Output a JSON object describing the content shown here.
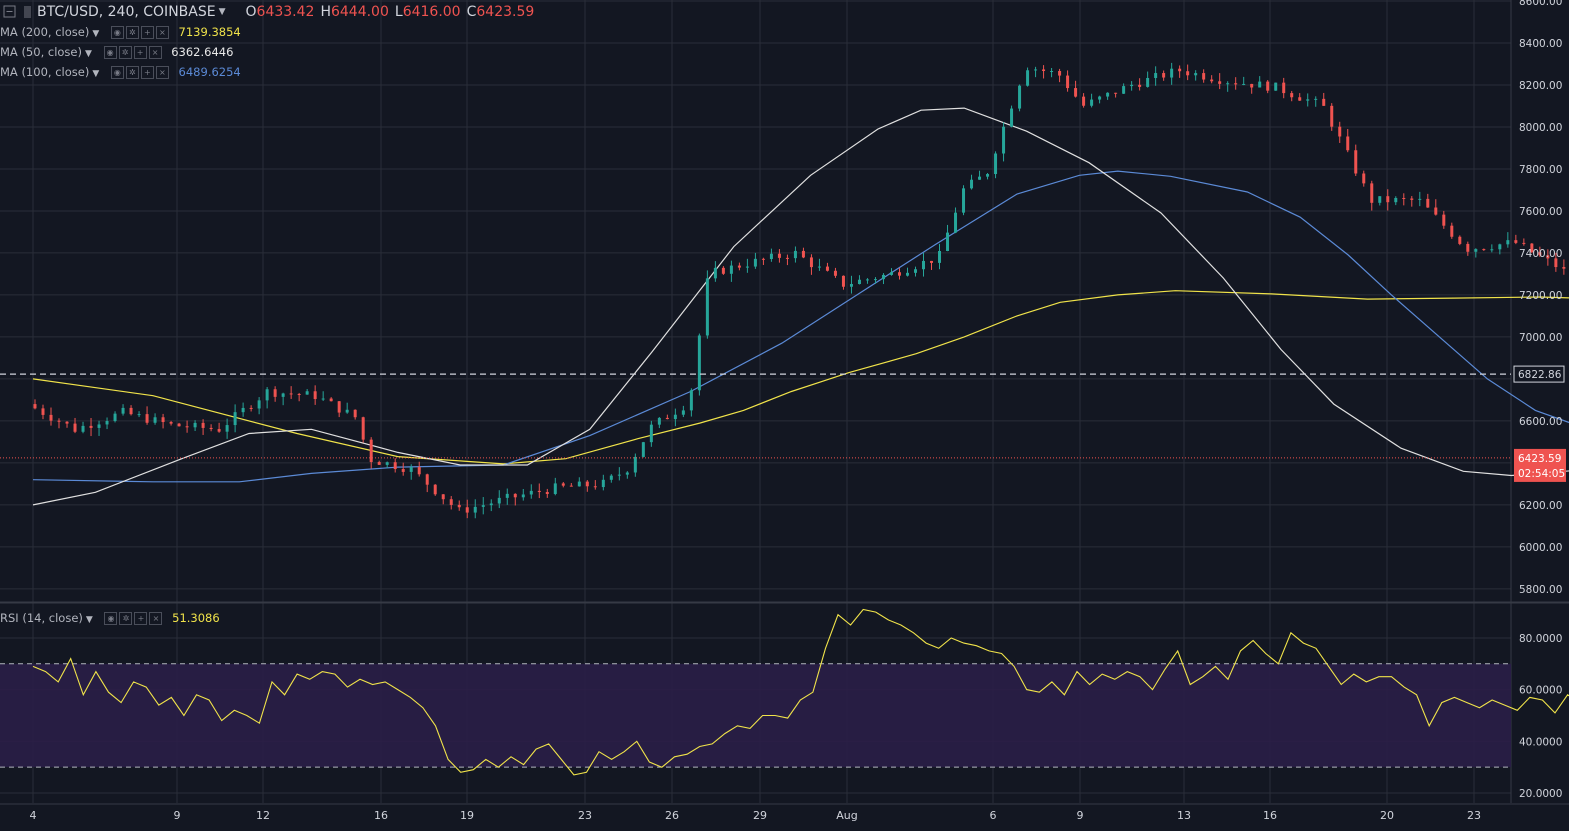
{
  "header": {
    "symbol": "BTC/USD, 240, COINBASE",
    "o_label": "O",
    "o_value": "6433.42",
    "h_label": "H",
    "h_value": "6444.00",
    "l_label": "L",
    "l_value": "6416.00",
    "c_label": "C",
    "c_value": "6423.59"
  },
  "studies": [
    {
      "name": "MA (200, close)",
      "value": "7139.3854",
      "color": "#f0e34a"
    },
    {
      "name": "MA (50, close)",
      "value": "6362.6446",
      "color": "#e0e0e0"
    },
    {
      "name": "MA (100, close)",
      "value": "6489.6254",
      "color": "#5b8ad6"
    }
  ],
  "rsi_legend": {
    "name": "RSI (14, close)",
    "value": "51.3086",
    "color": "#f0e34a"
  },
  "price_axis": {
    "ticks": [
      "8600.00",
      "8400.00",
      "8200.00",
      "8000.00",
      "7800.00",
      "7600.00",
      "7400.00",
      "7200.00",
      "7000.00",
      "6600.00",
      "6400.00",
      "6200.00",
      "6000.00",
      "5800.00"
    ]
  },
  "rsi_axis": {
    "ticks": [
      "80.0000",
      "60.0000",
      "40.0000",
      "20.0000"
    ]
  },
  "price_labels": {
    "hline": "6822.86",
    "last": "6423.59",
    "countdown": "02:54:05"
  },
  "time_axis": {
    "labels": [
      "4",
      "9",
      "12",
      "16",
      "19",
      "23",
      "26",
      "29",
      "Aug",
      "6",
      "9",
      "13",
      "16",
      "20",
      "23"
    ]
  },
  "colors": {
    "bg": "#131722",
    "grid": "#2a2e39",
    "up": "#26a69a",
    "down": "#ef5350",
    "rsi_band": "#2a1e47"
  },
  "chart_data": {
    "type": "candlestick",
    "timeframe": "240",
    "price_range": [
      5750,
      8650
    ],
    "hline_price": 6822.86,
    "last_price": 6423.59,
    "ma200": [
      [
        0,
        6800
      ],
      [
        2.5,
        6720
      ],
      [
        5.5,
        6540
      ],
      [
        7.6,
        6430
      ],
      [
        9.8,
        6395
      ],
      [
        11.1,
        6420
      ],
      [
        12.6,
        6515
      ],
      [
        13.9,
        6590
      ],
      [
        14.8,
        6650
      ],
      [
        15.8,
        6740
      ],
      [
        17.0,
        6830
      ],
      [
        18.4,
        6920
      ],
      [
        19.4,
        7000
      ],
      [
        20.5,
        7100
      ],
      [
        21.4,
        7165
      ],
      [
        22.6,
        7200
      ],
      [
        23.8,
        7220
      ],
      [
        25.8,
        7205
      ],
      [
        27.8,
        7180
      ],
      [
        29.6,
        7185
      ],
      [
        31.4,
        7190
      ],
      [
        32.8,
        7180
      ],
      [
        33.6,
        7150
      ],
      [
        34.0,
        7140
      ]
    ],
    "ma50": [
      [
        0,
        6200
      ],
      [
        1.3,
        6260
      ],
      [
        3.1,
        6420
      ],
      [
        4.5,
        6540
      ],
      [
        5.8,
        6560
      ],
      [
        7.6,
        6450
      ],
      [
        8.9,
        6390
      ],
      [
        10.3,
        6390
      ],
      [
        11.6,
        6560
      ],
      [
        12.9,
        6930
      ],
      [
        14.6,
        7430
      ],
      [
        16.2,
        7770
      ],
      [
        17.6,
        7990
      ],
      [
        18.5,
        8080
      ],
      [
        19.4,
        8090
      ],
      [
        20.7,
        7980
      ],
      [
        22.0,
        7830
      ],
      [
        23.5,
        7590
      ],
      [
        24.8,
        7280
      ],
      [
        26.0,
        6940
      ],
      [
        27.1,
        6680
      ],
      [
        28.5,
        6470
      ],
      [
        29.8,
        6360
      ],
      [
        30.8,
        6340
      ],
      [
        32.2,
        6365
      ],
      [
        33.3,
        6370
      ],
      [
        33.8,
        6362
      ]
    ],
    "ma100": [
      [
        0,
        6320
      ],
      [
        2.5,
        6310
      ],
      [
        4.3,
        6310
      ],
      [
        5.8,
        6350
      ],
      [
        7.6,
        6380
      ],
      [
        9.8,
        6390
      ],
      [
        11.6,
        6530
      ],
      [
        13.7,
        6740
      ],
      [
        15.6,
        6970
      ],
      [
        17.3,
        7220
      ],
      [
        18.8,
        7440
      ],
      [
        20.5,
        7680
      ],
      [
        21.8,
        7770
      ],
      [
        22.6,
        7790
      ],
      [
        23.7,
        7765
      ],
      [
        25.3,
        7690
      ],
      [
        26.4,
        7570
      ],
      [
        27.4,
        7390
      ],
      [
        28.3,
        7200
      ],
      [
        29.3,
        7000
      ],
      [
        30.3,
        6800
      ],
      [
        31.3,
        6650
      ],
      [
        32.4,
        6560
      ],
      [
        33.5,
        6500
      ],
      [
        34.0,
        6489
      ]
    ],
    "rsi": {
      "range": [
        15,
        95
      ],
      "upper": 70,
      "lower": 30,
      "values": [
        69,
        67,
        63,
        72,
        58,
        67,
        59,
        55,
        63,
        61,
        54,
        57,
        50,
        58,
        56,
        48,
        52,
        50,
        47,
        63,
        58,
        66,
        64,
        67,
        66,
        61,
        64,
        62,
        63,
        60,
        57,
        53,
        46,
        33,
        28,
        29,
        33,
        30,
        34,
        31,
        37,
        39,
        33,
        27,
        28,
        36,
        33,
        36,
        40,
        32,
        30,
        34,
        35,
        38,
        39,
        43,
        46,
        45,
        50,
        50,
        49,
        56,
        59,
        76,
        89,
        85,
        91,
        90,
        87,
        85,
        82,
        78,
        76,
        80,
        78,
        77,
        75,
        74,
        69,
        60,
        59,
        63,
        58,
        67,
        62,
        66,
        64,
        67,
        65,
        60,
        68,
        75,
        62,
        65,
        69,
        64,
        75,
        79,
        74,
        70,
        82,
        78,
        76,
        69,
        62,
        66,
        63,
        65,
        65,
        61,
        58,
        46,
        55,
        57,
        55,
        53,
        56,
        54,
        52,
        57,
        56,
        51,
        58,
        55,
        51,
        48,
        50,
        55,
        50,
        39,
        30,
        25,
        23,
        26,
        25,
        27,
        35,
        28,
        34,
        28,
        33,
        27,
        36,
        30,
        37,
        40,
        36,
        33,
        25,
        27,
        33,
        31,
        31,
        29,
        33,
        28,
        31,
        43,
        46,
        45,
        39,
        30,
        27,
        25,
        26,
        26,
        30,
        27,
        31,
        36,
        44,
        30,
        31,
        29,
        35,
        44,
        28,
        30,
        32,
        32,
        38,
        45,
        48,
        45,
        51,
        45,
        47,
        50,
        52,
        47,
        43,
        40,
        33,
        36,
        38,
        42,
        48,
        55,
        60,
        58,
        55,
        52,
        57,
        54,
        61,
        53,
        58,
        60,
        57,
        62,
        55,
        48,
        44,
        52,
        56,
        54,
        53,
        57,
        51,
        48,
        50,
        40,
        45,
        52,
        51
      ]
    }
  }
}
